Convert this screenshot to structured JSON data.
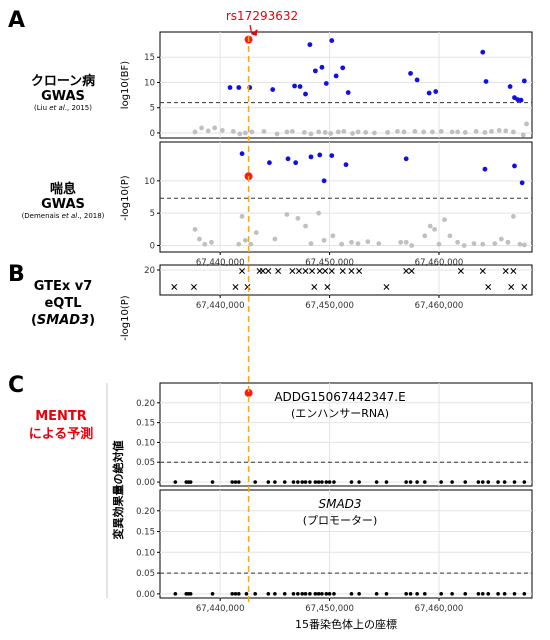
{
  "panel_letters": [
    "A",
    "B",
    "C"
  ],
  "labels": {
    "crohn": {
      "line1": "クローン病",
      "line2": "GWAS",
      "cite_pre": "(Liu ",
      "cite_em": "et al",
      "cite_post": "., 2015)"
    },
    "asthma": {
      "line1": "喘息",
      "line2": "GWAS",
      "cite_pre": "(Demenais ",
      "cite_em": "et al",
      "cite_post": "., 2018)"
    },
    "gtex": {
      "line1": "GTEx v7",
      "line2": "eQTL",
      "line3": "SMAD3"
    },
    "mentr": {
      "line1": "MENTR",
      "line2": "による予測",
      "color": "#e8000b"
    }
  },
  "annotation": {
    "snp": "rs17293632",
    "snp_position": 67442596,
    "color": "#e8000b"
  },
  "xaxis": {
    "title": "15番染色体上の座標",
    "range": [
      67434500,
      67468500
    ],
    "ticks": [
      67440000,
      67450000,
      67460000
    ],
    "tick_labels": [
      "67,440,000",
      "67,450,000",
      "67,460,000"
    ]
  },
  "colors": {
    "significant": "#1010e6",
    "nonsignificant": "#c0c0c0",
    "lead": "#ff1a1a",
    "dots": "#000000",
    "highlight_line": "#f5a623",
    "threshold": "#333333"
  },
  "chart_data": [
    {
      "id": "crohn",
      "type": "scatter",
      "ylabel": "log10(BF)",
      "ylim": [
        -1,
        20
      ],
      "yticks": [
        0,
        5,
        10,
        15
      ],
      "threshold": 6,
      "lead": {
        "x": 67442596,
        "y": 18.5
      },
      "significant": [
        [
          67440900,
          9
        ],
        [
          67441700,
          9
        ],
        [
          67442700,
          9
        ],
        [
          67444800,
          8.6
        ],
        [
          67446800,
          9.3
        ],
        [
          67447300,
          9.2
        ],
        [
          67447800,
          7.7
        ],
        [
          67448200,
          17.5
        ],
        [
          67448700,
          12.3
        ],
        [
          67449300,
          13
        ],
        [
          67449700,
          9.8
        ],
        [
          67450200,
          18.3
        ],
        [
          67450600,
          11.3
        ],
        [
          67451200,
          12.9
        ],
        [
          67451700,
          8
        ],
        [
          67457400,
          11.8
        ],
        [
          67458000,
          10.5
        ],
        [
          67459100,
          7.9
        ],
        [
          67459700,
          8.2
        ],
        [
          67464000,
          16
        ],
        [
          67464300,
          10.2
        ],
        [
          67466500,
          9.2
        ],
        [
          67466900,
          7
        ],
        [
          67467200,
          6.6
        ],
        [
          67467500,
          6.5
        ],
        [
          67467800,
          10.3
        ]
      ],
      "nonsignificant": [
        [
          67437700,
          0.2
        ],
        [
          67438300,
          1
        ],
        [
          67438900,
          0.4
        ],
        [
          67439500,
          1
        ],
        [
          67440200,
          0.5
        ],
        [
          67441200,
          0.3
        ],
        [
          67441800,
          -0.2
        ],
        [
          67442300,
          0
        ],
        [
          67442900,
          0.2
        ],
        [
          67444000,
          0.3
        ],
        [
          67445200,
          -0.2
        ],
        [
          67446100,
          0.2
        ],
        [
          67446600,
          0.3
        ],
        [
          67447700,
          0.1
        ],
        [
          67448300,
          -0.2
        ],
        [
          67449000,
          0.2
        ],
        [
          67449600,
          0.1
        ],
        [
          67450100,
          -0.1
        ],
        [
          67450800,
          0.2
        ],
        [
          67451300,
          0.3
        ],
        [
          67452100,
          -0.1
        ],
        [
          67452600,
          0.2
        ],
        [
          67453300,
          0.1
        ],
        [
          67454100,
          0
        ],
        [
          67455300,
          0.1
        ],
        [
          67456200,
          0.3
        ],
        [
          67456800,
          0.2
        ],
        [
          67457800,
          0.3
        ],
        [
          67458600,
          0.2
        ],
        [
          67459400,
          0.2
        ],
        [
          67460200,
          0.3
        ],
        [
          67461200,
          0.2
        ],
        [
          67461700,
          0.2
        ],
        [
          67462400,
          0.1
        ],
        [
          67463400,
          0.3
        ],
        [
          67464200,
          0.1
        ],
        [
          67464800,
          0.3
        ],
        [
          67465500,
          0.5
        ],
        [
          67466100,
          0.4
        ],
        [
          67466800,
          0.2
        ],
        [
          67467700,
          -0.4
        ],
        [
          67468000,
          1.8
        ]
      ]
    },
    {
      "id": "asthma",
      "type": "scatter",
      "ylabel": "-log10(P)",
      "ylim": [
        -1,
        16
      ],
      "yticks": [
        0,
        5,
        10
      ],
      "threshold": 7.3,
      "lead": {
        "x": 67442596,
        "y": 10.7
      },
      "significant": [
        [
          67442000,
          14.2
        ],
        [
          67444500,
          12.8
        ],
        [
          67446200,
          13.4
        ],
        [
          67446900,
          12.8
        ],
        [
          67448300,
          13.7
        ],
        [
          67449100,
          14
        ],
        [
          67449500,
          10
        ],
        [
          67450200,
          13.9
        ],
        [
          67451500,
          12.5
        ],
        [
          67457000,
          13.4
        ],
        [
          67464200,
          11.8
        ],
        [
          67466900,
          12.3
        ],
        [
          67467600,
          9.7
        ]
      ],
      "nonsignificant": [
        [
          67437700,
          2.5
        ],
        [
          67438100,
          1
        ],
        [
          67438600,
          0.2
        ],
        [
          67439200,
          0.5
        ],
        [
          67441700,
          0.2
        ],
        [
          67442000,
          4.5
        ],
        [
          67442300,
          0.8
        ],
        [
          67442800,
          0.2
        ],
        [
          67443300,
          2
        ],
        [
          67445000,
          1
        ],
        [
          67446100,
          4.8
        ],
        [
          67447100,
          4.2
        ],
        [
          67447800,
          3
        ],
        [
          67448300,
          0.3
        ],
        [
          67449000,
          5
        ],
        [
          67449500,
          0.8
        ],
        [
          67450300,
          1.5
        ],
        [
          67451100,
          0.2
        ],
        [
          67452000,
          0.5
        ],
        [
          67452600,
          0.3
        ],
        [
          67453500,
          0.6
        ],
        [
          67454500,
          0.3
        ],
        [
          67456500,
          0.5
        ],
        [
          67457000,
          0.5
        ],
        [
          67457500,
          0
        ],
        [
          67458700,
          1.5
        ],
        [
          67459200,
          3
        ],
        [
          67459600,
          2.5
        ],
        [
          67460000,
          0.2
        ],
        [
          67460500,
          4
        ],
        [
          67461000,
          1.5
        ],
        [
          67461700,
          0.5
        ],
        [
          67462300,
          0
        ],
        [
          67463200,
          0.3
        ],
        [
          67464000,
          0.2
        ],
        [
          67465100,
          0.3
        ],
        [
          67465700,
          1
        ],
        [
          67466300,
          0.5
        ],
        [
          67466800,
          4.5
        ],
        [
          67467400,
          0.2
        ],
        [
          67467800,
          0.1
        ]
      ]
    },
    {
      "id": "gtex",
      "type": "scatter",
      "ylabel": "-log10(P)",
      "ylim": [
        15,
        21
      ],
      "yticks": [
        20
      ],
      "marker": "x",
      "points": [
        [
          67435800,
          16.6
        ],
        [
          67437600,
          16.6
        ],
        [
          67441400,
          16.6
        ],
        [
          67442500,
          16.6
        ],
        [
          67442000,
          19.8
        ],
        [
          67443600,
          19.8
        ],
        [
          67443900,
          19.8
        ],
        [
          67444400,
          19.8
        ],
        [
          67445300,
          19.8
        ],
        [
          67446600,
          19.8
        ],
        [
          67447200,
          19.8
        ],
        [
          67447800,
          19.8
        ],
        [
          67448400,
          19.8
        ],
        [
          67449100,
          19.8
        ],
        [
          67449600,
          19.8
        ],
        [
          67450200,
          19.8
        ],
        [
          67451200,
          19.8
        ],
        [
          67452000,
          19.8
        ],
        [
          67452700,
          19.8
        ],
        [
          67448600,
          16.6
        ],
        [
          67449800,
          16.6
        ],
        [
          67455200,
          16.6
        ],
        [
          67457000,
          19.8
        ],
        [
          67457500,
          19.8
        ],
        [
          67462000,
          19.8
        ],
        [
          67464000,
          19.8
        ],
        [
          67464500,
          16.6
        ],
        [
          67466100,
          19.8
        ],
        [
          67466600,
          16.6
        ],
        [
          67466800,
          19.8
        ],
        [
          67467800,
          16.6
        ]
      ]
    },
    {
      "id": "mentr_enhancer",
      "type": "scatter",
      "label": "ADDG15067442347.E",
      "sublabel": "(エンハンサーRNA)",
      "ylim": [
        -0.01,
        0.25
      ],
      "yticks": [
        0,
        0.05,
        0.1,
        0.15,
        0.2
      ],
      "tick_labels": [
        "0.00",
        "0.05",
        "0.10",
        "0.15",
        "0.20"
      ],
      "threshold": 0.05,
      "lead": {
        "x": 67442596,
        "y": 0.225
      },
      "points": [
        [
          67435900,
          0
        ],
        [
          67436900,
          0
        ],
        [
          67437100,
          0
        ],
        [
          67437300,
          0
        ],
        [
          67439300,
          0
        ],
        [
          67441100,
          0
        ],
        [
          67441400,
          0
        ],
        [
          67441700,
          0
        ],
        [
          67443200,
          0
        ],
        [
          67444400,
          0
        ],
        [
          67445000,
          0
        ],
        [
          67445900,
          0
        ],
        [
          67446700,
          0
        ],
        [
          67447100,
          0
        ],
        [
          67447500,
          0
        ],
        [
          67447800,
          0
        ],
        [
          67448200,
          0
        ],
        [
          67448700,
          0
        ],
        [
          67449000,
          0
        ],
        [
          67449300,
          0
        ],
        [
          67449700,
          0
        ],
        [
          67450000,
          0
        ],
        [
          67450400,
          0
        ],
        [
          67452000,
          0
        ],
        [
          67452700,
          0
        ],
        [
          67454300,
          0
        ],
        [
          67455200,
          0
        ],
        [
          67457000,
          0
        ],
        [
          67457400,
          0
        ],
        [
          67458000,
          0
        ],
        [
          67458700,
          0
        ],
        [
          67460200,
          0
        ],
        [
          67461200,
          0
        ],
        [
          67462400,
          0
        ],
        [
          67463600,
          0
        ],
        [
          67464000,
          0
        ],
        [
          67464500,
          0
        ],
        [
          67465400,
          0
        ],
        [
          67466000,
          0
        ],
        [
          67466900,
          0
        ],
        [
          67467800,
          0
        ]
      ]
    },
    {
      "id": "mentr_promoter",
      "type": "scatter",
      "label": "SMAD3",
      "sublabel": "(プロモーター)",
      "ylim": [
        -0.01,
        0.25
      ],
      "yticks": [
        0,
        0.05,
        0.1,
        0.15,
        0.2
      ],
      "tick_labels": [
        "0.00",
        "0.05",
        "0.10",
        "0.15",
        "0.20"
      ],
      "threshold": 0.05,
      "points": [
        [
          67435900,
          0
        ],
        [
          67436900,
          0
        ],
        [
          67437100,
          0
        ],
        [
          67437300,
          0
        ],
        [
          67439300,
          0
        ],
        [
          67441100,
          0
        ],
        [
          67441400,
          0
        ],
        [
          67441700,
          0
        ],
        [
          67442400,
          0
        ],
        [
          67443200,
          0
        ],
        [
          67444400,
          0
        ],
        [
          67445000,
          0
        ],
        [
          67445900,
          0
        ],
        [
          67446700,
          0
        ],
        [
          67447100,
          0
        ],
        [
          67447500,
          0
        ],
        [
          67447800,
          0
        ],
        [
          67448200,
          0
        ],
        [
          67448700,
          0
        ],
        [
          67449000,
          0
        ],
        [
          67449300,
          0
        ],
        [
          67449700,
          0
        ],
        [
          67450000,
          0
        ],
        [
          67450400,
          0
        ],
        [
          67452000,
          0
        ],
        [
          67452700,
          0
        ],
        [
          67454300,
          0
        ],
        [
          67455200,
          0
        ],
        [
          67457000,
          0
        ],
        [
          67457400,
          0
        ],
        [
          67458000,
          0
        ],
        [
          67458700,
          0
        ],
        [
          67460200,
          0
        ],
        [
          67461200,
          0
        ],
        [
          67462400,
          0
        ],
        [
          67463600,
          0
        ],
        [
          67464000,
          0
        ],
        [
          67464500,
          0
        ],
        [
          67465400,
          0
        ],
        [
          67466000,
          0
        ],
        [
          67466900,
          0
        ],
        [
          67467800,
          0
        ]
      ]
    }
  ],
  "mentr_ylabel": "変異効果量の絶対値"
}
